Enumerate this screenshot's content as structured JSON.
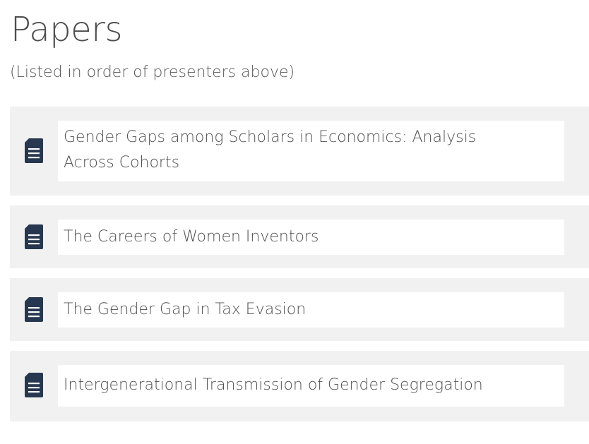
{
  "page": {
    "title": "Papers",
    "subtitle": "(Listed in order of presenters above)"
  },
  "papers": [
    {
      "title": "Gender Gaps among Scholars in Economics: Analysis Across Cohorts",
      "icon": "document-icon"
    },
    {
      "title": "The Careers of Women Inventors",
      "icon": "document-icon"
    },
    {
      "title": "The Gender Gap in Tax Evasion",
      "icon": "document-icon"
    },
    {
      "title": "Intergenerational Transmission of Gender Segregation",
      "icon": "document-icon"
    }
  ],
  "colors": {
    "icon": "#26374f",
    "row_background": "#f1f1f1",
    "text": "#505050"
  }
}
